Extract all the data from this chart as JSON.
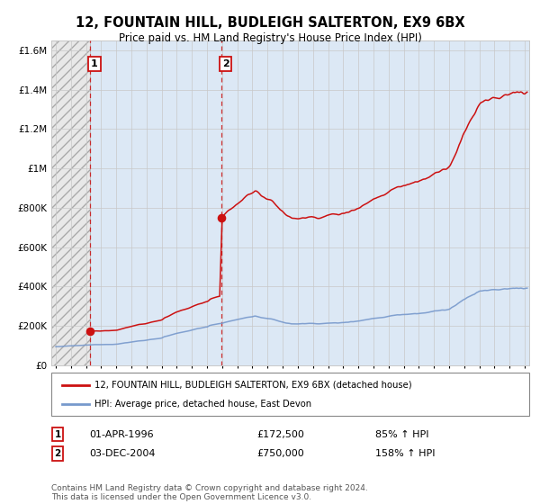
{
  "title": "12, FOUNTAIN HILL, BUDLEIGH SALTERTON, EX9 6BX",
  "subtitle": "Price paid vs. HM Land Registry's House Price Index (HPI)",
  "red_label": "12, FOUNTAIN HILL, BUDLEIGH SALTERTON, EX9 6BX (detached house)",
  "blue_label": "HPI: Average price, detached house, East Devon",
  "transaction1_date": 1996.25,
  "transaction1_price": 172500,
  "transaction1_label": "01-APR-1996",
  "transaction1_price_str": "£172,500",
  "transaction1_hpi": "85% ↑ HPI",
  "transaction2_date": 2004.92,
  "transaction2_price": 750000,
  "transaction2_label": "03-DEC-2004",
  "transaction2_price_str": "£750,000",
  "transaction2_hpi": "158% ↑ HPI",
  "ylim": [
    0,
    1650000
  ],
  "xlim": [
    1993.7,
    2025.3
  ],
  "yticks": [
    0,
    200000,
    400000,
    600000,
    800000,
    1000000,
    1200000,
    1400000,
    1600000
  ],
  "ytick_labels": [
    "£0",
    "£200K",
    "£400K",
    "£600K",
    "£800K",
    "£1M",
    "£1.2M",
    "£1.4M",
    "£1.6M"
  ],
  "background_color": "#ffffff",
  "plot_bg_color": "#dce8f5",
  "hatch_bg_color": "#f0f0f0",
  "red_color": "#cc1111",
  "blue_color": "#7799cc",
  "grid_color": "#c8c8c8",
  "footnote": "Contains HM Land Registry data © Crown copyright and database right 2024.\nThis data is licensed under the Open Government Licence v3.0."
}
